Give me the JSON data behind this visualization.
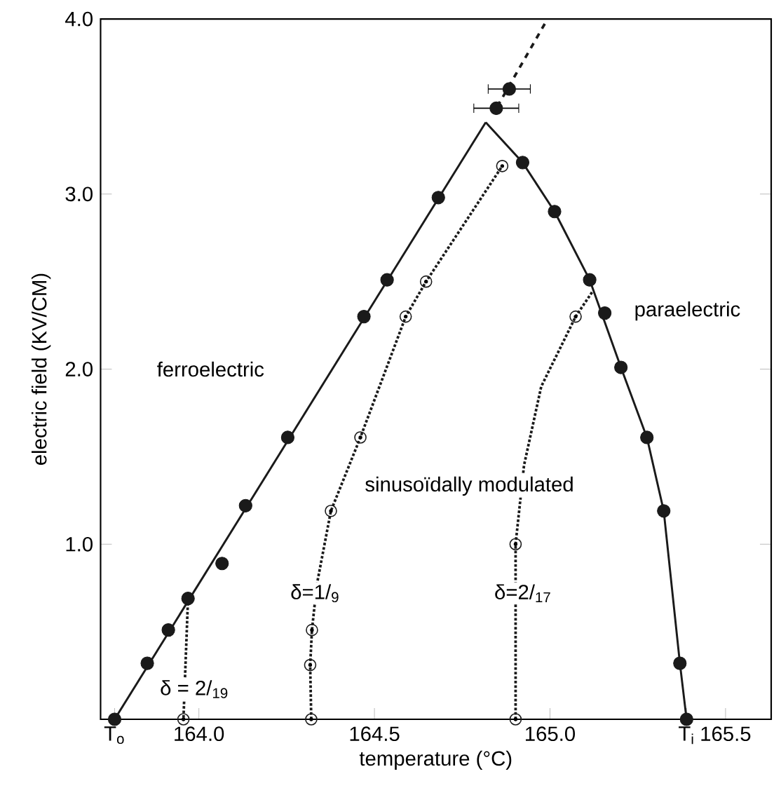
{
  "chart_data": {
    "type": "scatter",
    "xlabel": "temperature (°C)",
    "ylabel": "electric field (KV/CM)",
    "xlim": [
      163.72,
      165.63
    ],
    "ylim": [
      0,
      4
    ],
    "xticks": [
      {
        "value": 163.76,
        "label": "T$_{o}$"
      },
      {
        "value": 164,
        "label": "164.0"
      },
      {
        "value": 164.5,
        "label": "164.5"
      },
      {
        "value": 165,
        "label": "165.0"
      },
      {
        "value": 165.389,
        "label": "T$_{i}$"
      },
      {
        "value": 165.5,
        "label": "165.5"
      }
    ],
    "yticks": [
      {
        "value": 1,
        "label": "1.0"
      },
      {
        "value": 2,
        "label": "2.0"
      },
      {
        "value": 3,
        "label": "3.0"
      },
      {
        "value": 4,
        "label": "4.0"
      }
    ],
    "grid": false,
    "series": [
      {
        "type": "line",
        "color": "#1a1a1a",
        "marker": "none",
        "line_style": "solid",
        "x": [
          163.76,
          164.817
        ],
        "values": [
          0,
          3.41
        ]
      },
      {
        "type": "line",
        "color": "#1a1a1a",
        "marker": "none",
        "line_style": "solid",
        "x": [
          164.817,
          164.922,
          165.013,
          165.113,
          165.202,
          165.276,
          165.324,
          165.37,
          165.389
        ],
        "values": [
          3.41,
          3.18,
          2.9,
          2.51,
          2.01,
          1.61,
          1.19,
          0.32,
          0
        ]
      },
      {
        "type": "line",
        "color": "#1a1a1a",
        "marker": "none",
        "line_style": "dashed",
        "x": [
          164.85,
          164.993
        ],
        "values": [
          3.5,
          4.0
        ]
      },
      {
        "type": "line",
        "color": "#1a1a1a",
        "marker": "none",
        "line_style": "dotted",
        "x": [
          163.969,
          163.956
        ],
        "values": [
          0.69,
          0
        ]
      },
      {
        "type": "line",
        "color": "#1a1a1a",
        "marker": "none",
        "line_style": "dotted",
        "x": [
          164.32,
          164.317,
          164.322,
          164.336,
          164.376,
          164.46,
          164.589,
          164.647,
          164.864
        ],
        "values": [
          0,
          0.31,
          0.51,
          0.77,
          1.19,
          1.61,
          2.3,
          2.5,
          3.16
        ]
      },
      {
        "type": "line",
        "color": "#1a1a1a",
        "marker": "none",
        "line_style": "dotted",
        "x": [
          164.902,
          164.902,
          164.926,
          164.975,
          165.073,
          165.12
        ],
        "values": [
          0,
          1.0,
          1.45,
          1.9,
          2.3,
          2.44
        ]
      },
      {
        "color": "#1a1a1a",
        "marker": "circle",
        "x": [
          163.76,
          163.853,
          163.913,
          163.969,
          164.066,
          164.133,
          164.253,
          164.47,
          164.536,
          164.682,
          164.847,
          164.884,
          164.922,
          165.013,
          165.113,
          165.156,
          165.202,
          165.276,
          165.324,
          165.37,
          165.389
        ],
        "values": [
          0,
          0.32,
          0.51,
          0.69,
          0.89,
          1.22,
          1.61,
          2.3,
          2.51,
          2.98,
          3.49,
          3.6,
          3.18,
          2.9,
          2.51,
          2.32,
          2.01,
          1.61,
          1.19,
          0.32,
          0
        ],
        "xerrors": [
          null,
          null,
          null,
          null,
          null,
          null,
          null,
          null,
          null,
          null,
          0.064,
          0.06,
          null,
          null,
          null,
          null,
          null,
          null,
          null,
          null,
          null
        ]
      },
      {
        "color": "#1a1a1a",
        "marker": "open circle",
        "x": [
          163.956,
          164.32,
          164.317,
          164.322,
          164.376,
          164.46,
          164.589,
          164.647,
          164.864,
          164.902,
          164.902,
          165.073
        ],
        "values": [
          0,
          0,
          0.31,
          0.51,
          1.19,
          1.61,
          2.3,
          2.5,
          3.16,
          0,
          1.0,
          2.3
        ]
      }
    ],
    "annotations": [
      "ferroelectric",
      "paraelectric",
      "sinusoïdally modulated",
      "δ = 2/$_{19}$",
      "δ=1/$_{9}$",
      "δ=2/$_{17}$"
    ]
  }
}
